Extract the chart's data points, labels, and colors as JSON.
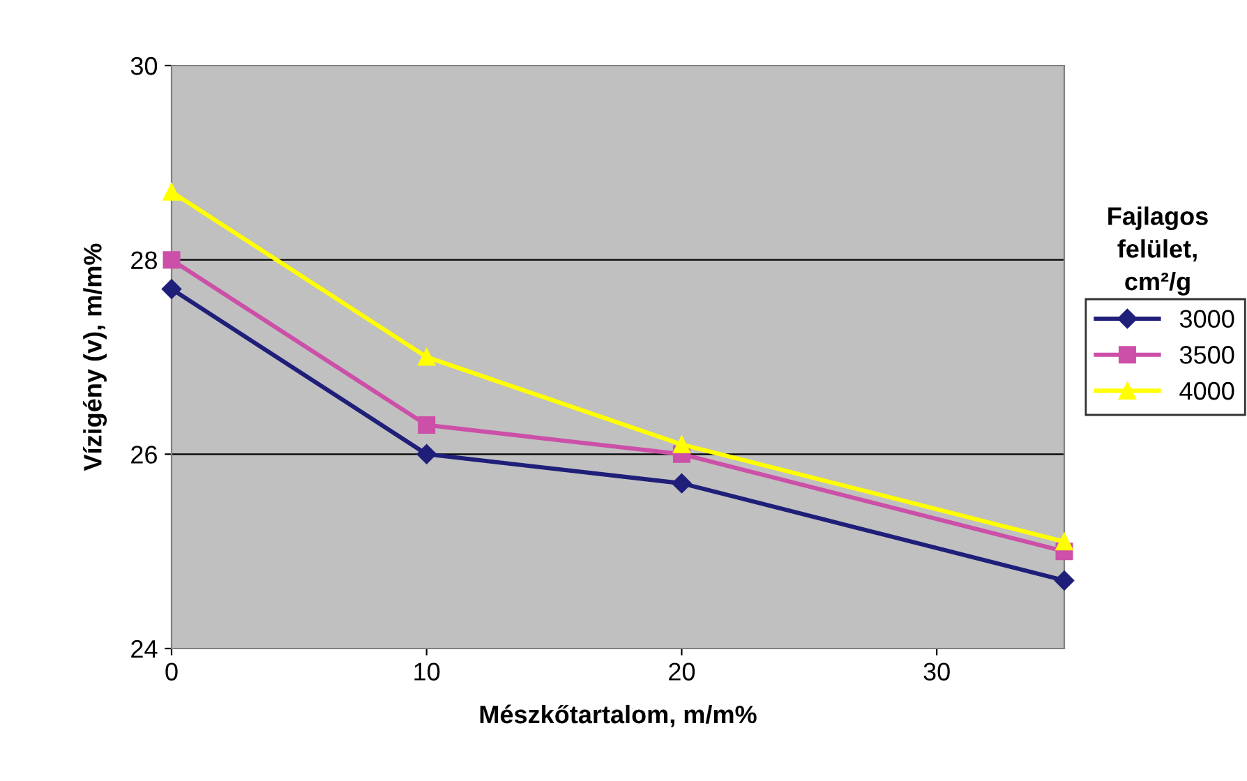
{
  "chart_data": {
    "type": "line",
    "xlabel": "Mészkőtartalom, m/m%",
    "ylabel": "Vízigény (v), m/m%",
    "legend_title": "Fajlagos felület, cm²/g",
    "x": [
      0,
      10,
      20,
      35
    ],
    "xlim": [
      0,
      35
    ],
    "xticks": [
      0,
      10,
      20,
      30
    ],
    "ylim": [
      24,
      30
    ],
    "yticks": [
      24,
      26,
      28,
      30
    ],
    "grid": "y",
    "legend": "right",
    "line_style": "solid",
    "series": [
      {
        "name": "3000",
        "color": "#1f1f7a",
        "marker": "diamond",
        "values": [
          27.7,
          26.0,
          25.7,
          24.7
        ]
      },
      {
        "name": "3500",
        "color": "#cc4fa8",
        "marker": "square",
        "values": [
          28.0,
          26.3,
          26.0,
          25.0
        ]
      },
      {
        "name": "4000",
        "color": "#ffff00",
        "marker": "triangle",
        "values": [
          28.7,
          27.0,
          26.1,
          25.1
        ]
      }
    ]
  }
}
